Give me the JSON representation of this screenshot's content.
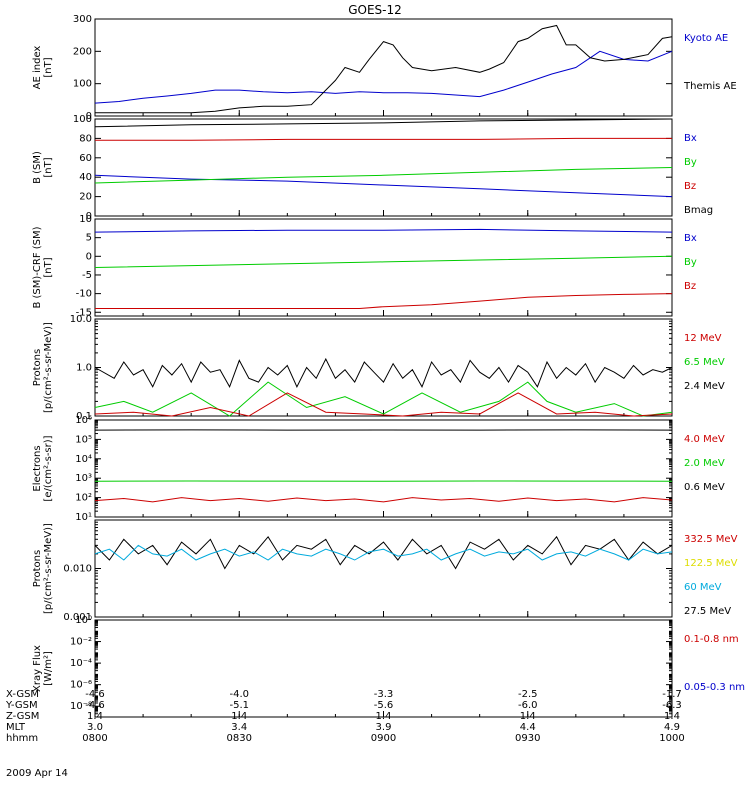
{
  "title": "GOES-12",
  "date_label": "2009 Apr 14",
  "colors": {
    "black": "#000000",
    "blue": "#0000cc",
    "green": "#00cc00",
    "red": "#cc0000",
    "cyan": "#00aadd",
    "yellow": "#dddd00"
  },
  "panels": [
    {
      "id": "ae",
      "ylabel": [
        "AE index",
        "[nT]"
      ],
      "scale": "linear",
      "ylim": [
        0,
        300
      ],
      "ticks": [
        "0",
        "100",
        "200",
        "300"
      ],
      "legend": [
        {
          "text": "Kyoto AE",
          "color": "blue"
        },
        {
          "text": "Themis AE",
          "color": "black"
        }
      ]
    },
    {
      "id": "b",
      "ylabel": [
        "B (SM)",
        "[nT]"
      ],
      "scale": "linear",
      "ylim": [
        0,
        100
      ],
      "ticks": [
        "0",
        "20",
        "40",
        "60",
        "80",
        "100"
      ],
      "legend": [
        {
          "text": "Bx",
          "color": "blue"
        },
        {
          "text": "By",
          "color": "green"
        },
        {
          "text": "Bz",
          "color": "red"
        },
        {
          "text": "Bmag",
          "color": "black"
        }
      ]
    },
    {
      "id": "db",
      "ylabel": [
        "B (SM)-CRF (SM)",
        "[nT]"
      ],
      "scale": "linear",
      "ylim": [
        -16,
        10
      ],
      "ticks": [
        "-15",
        "-10",
        "-5",
        "0",
        "5",
        "10"
      ],
      "legend": [
        {
          "text": "Bx",
          "color": "blue"
        },
        {
          "text": "By",
          "color": "green"
        },
        {
          "text": "Bz",
          "color": "red"
        }
      ]
    },
    {
      "id": "p1",
      "ylabel": [
        "Protons",
        "[p/(cm²-s-sr-MeV)]"
      ],
      "scale": "log",
      "ylim": [
        0.1,
        10
      ],
      "ticks": [
        "0.1",
        "1.0",
        "10.0"
      ],
      "legend": [
        {
          "text": "12 MeV",
          "color": "red"
        },
        {
          "text": "6.5 MeV",
          "color": "green"
        },
        {
          "text": "2.4 MeV",
          "color": "black"
        }
      ]
    },
    {
      "id": "e",
      "ylabel": [
        "Electrons",
        "[e/(cm²-s-sr)]"
      ],
      "scale": "log",
      "ylim": [
        10,
        1000000
      ],
      "ticks": [
        "10¹",
        "10²",
        "10³",
        "10⁴",
        "10⁵",
        "10⁶"
      ],
      "legend": [
        {
          "text": "4.0 MeV",
          "color": "red"
        },
        {
          "text": "2.0 MeV",
          "color": "green"
        },
        {
          "text": "0.6 MeV",
          "color": "black"
        }
      ]
    },
    {
      "id": "p2",
      "ylabel": [
        "Protons",
        "[p/(cm²-s-sr-MeV)]"
      ],
      "scale": "log",
      "ylim": [
        0.001,
        0.1
      ],
      "ticks": [
        "0.001",
        "0.010"
      ],
      "legend": [
        {
          "text": "332.5 MeV",
          "color": "red"
        },
        {
          "text": "122.5 MeV",
          "color": "yellow"
        },
        {
          "text": "60 MeV",
          "color": "cyan"
        },
        {
          "text": "27.5 MeV",
          "color": "black"
        }
      ]
    },
    {
      "id": "x",
      "ylabel": [
        "Xray Flux",
        "[W/m²]"
      ],
      "scale": "log",
      "ylim": [
        1e-09,
        1
      ],
      "ticks": [
        "10⁻⁸",
        "10⁻⁶",
        "10⁻⁴",
        "10⁻²",
        "10⁰"
      ],
      "legend": [
        {
          "text": "0.1-0.8 nm",
          "color": "red"
        },
        {
          "text": "0.05-0.3 nm",
          "color": "blue"
        }
      ]
    }
  ],
  "x_table": {
    "row_labels": [
      "X-GSM",
      "Y-GSM",
      "Z-GSM",
      "MLT",
      "hhmm"
    ],
    "columns": [
      {
        "values": [
          "-4.6",
          "-4.6",
          "1.4",
          "3.0",
          "0800"
        ]
      },
      {
        "values": [
          "-4.0",
          "-5.1",
          "1.4",
          "3.4",
          "0830"
        ]
      },
      {
        "values": [
          "-3.3",
          "-5.6",
          "1.4",
          "3.9",
          "0900"
        ]
      },
      {
        "values": [
          "-2.5",
          "-6.0",
          "1.4",
          "4.4",
          "0930"
        ]
      },
      {
        "values": [
          "-1.7",
          "-6.3",
          "1.4",
          "4.9",
          "1000"
        ]
      }
    ]
  },
  "chart_data": {
    "type": "line",
    "title": "GOES-12",
    "x_unit": "minutes since 0800 UT",
    "x_range": [
      0,
      120
    ],
    "panels": [
      {
        "id": "ae",
        "series": [
          {
            "name": "Kyoto AE",
            "color": "blue",
            "x": [
              0,
              5,
              10,
              15,
              20,
              25,
              30,
              35,
              40,
              45,
              50,
              55,
              60,
              65,
              70,
              75,
              80,
              85,
              90,
              95,
              100,
              105,
              110,
              115,
              120
            ],
            "y": [
              40,
              45,
              55,
              62,
              70,
              80,
              80,
              75,
              72,
              75,
              70,
              75,
              72,
              72,
              70,
              65,
              60,
              80,
              105,
              130,
              150,
              200,
              175,
              170,
              200
            ]
          },
          {
            "name": "Themis AE",
            "color": "black",
            "x": [
              0,
              5,
              10,
              15,
              20,
              25,
              30,
              35,
              40,
              45,
              50,
              52,
              55,
              57,
              60,
              62,
              64,
              66,
              70,
              75,
              80,
              82,
              85,
              88,
              90,
              93,
              96,
              98,
              100,
              103,
              106,
              110,
              115,
              118,
              120
            ],
            "y": [
              10,
              10,
              10,
              10,
              10,
              15,
              25,
              30,
              30,
              35,
              110,
              150,
              135,
              175,
              230,
              220,
              180,
              150,
              140,
              150,
              135,
              145,
              165,
              230,
              240,
              270,
              280,
              220,
              220,
              180,
              170,
              175,
              190,
              240,
              245
            ]
          }
        ]
      },
      {
        "id": "b",
        "series": [
          {
            "name": "Bx",
            "color": "blue",
            "x": [
              0,
              20,
              40,
              60,
              80,
              100,
              120
            ],
            "y": [
              42,
              38,
              36,
              32,
              28,
              24,
              20
            ]
          },
          {
            "name": "By",
            "color": "green",
            "x": [
              0,
              20,
              40,
              60,
              80,
              100,
              120
            ],
            "y": [
              34,
              37,
              40,
              42,
              45,
              48,
              50
            ]
          },
          {
            "name": "Bz",
            "color": "red",
            "x": [
              0,
              20,
              40,
              60,
              80,
              100,
              120
            ],
            "y": [
              78,
              78,
              79,
              79,
              79,
              80,
              80
            ]
          },
          {
            "name": "Bmag",
            "color": "black",
            "x": [
              0,
              20,
              40,
              60,
              80,
              100,
              120
            ],
            "y": [
              92,
              94,
              95,
              96,
              98,
              99,
              100
            ]
          }
        ]
      },
      {
        "id": "db",
        "series": [
          {
            "name": "Bx",
            "color": "blue",
            "x": [
              0,
              20,
              40,
              60,
              80,
              100,
              120
            ],
            "y": [
              6.5,
              6.8,
              7,
              7,
              7.2,
              6.8,
              6.5
            ]
          },
          {
            "name": "By",
            "color": "green",
            "x": [
              0,
              20,
              40,
              60,
              80,
              100,
              120
            ],
            "y": [
              -3,
              -2.5,
              -2,
              -1.5,
              -1,
              -0.5,
              0
            ]
          },
          {
            "name": "Bz",
            "color": "red",
            "x": [
              0,
              20,
              40,
              55,
              60,
              70,
              80,
              90,
              100,
              110,
              120
            ],
            "y": [
              -14,
              -14,
              -14,
              -14,
              -13.5,
              -13,
              -12,
              -11,
              -10.5,
              -10.2,
              -10
            ]
          }
        ]
      },
      {
        "id": "p1",
        "series": [
          {
            "name": "2.4 MeV",
            "color": "black",
            "x": [
              0,
              4,
              6,
              8,
              10,
              12,
              14,
              16,
              18,
              20,
              22,
              24,
              26,
              28,
              30,
              32,
              34,
              36,
              38,
              40,
              42,
              44,
              46,
              48,
              50,
              52,
              54,
              56,
              58,
              60,
              62,
              64,
              66,
              68,
              70,
              72,
              74,
              76,
              78,
              80,
              82,
              84,
              86,
              88,
              90,
              92,
              94,
              96,
              98,
              100,
              102,
              104,
              106,
              108,
              110,
              112,
              114,
              116,
              118,
              120
            ],
            "y": [
              1.0,
              0.6,
              1.3,
              0.7,
              0.9,
              0.4,
              1.1,
              0.7,
              1.2,
              0.5,
              1.3,
              0.8,
              0.9,
              0.4,
              1.4,
              0.6,
              0.5,
              1.0,
              0.7,
              1.1,
              0.4,
              1.0,
              0.6,
              1.5,
              0.6,
              0.9,
              0.5,
              1.3,
              0.8,
              0.5,
              1.2,
              0.6,
              0.9,
              0.4,
              1.3,
              0.7,
              0.9,
              0.5,
              1.4,
              0.8,
              0.6,
              1.0,
              0.5,
              1.1,
              0.8,
              0.4,
              1.3,
              0.6,
              1.0,
              0.7,
              1.2,
              0.5,
              1.0,
              0.8,
              0.6,
              1.1,
              0.7,
              0.9,
              0.8,
              1.0
            ]
          },
          {
            "name": "6.5 MeV",
            "color": "green",
            "x": [
              0,
              6,
              12,
              20,
              28,
              36,
              44,
              52,
              60,
              68,
              76,
              84,
              90,
              94,
              100,
              108,
              114,
              120
            ],
            "y": [
              0.15,
              0.2,
              0.12,
              0.3,
              0.1,
              0.5,
              0.15,
              0.25,
              0.11,
              0.3,
              0.12,
              0.2,
              0.5,
              0.2,
              0.12,
              0.18,
              0.1,
              0.12
            ]
          },
          {
            "name": "12 MeV",
            "color": "red",
            "x": [
              0,
              8,
              16,
              24,
              32,
              40,
              48,
              56,
              64,
              72,
              80,
              88,
              96,
              104,
              112,
              120
            ],
            "y": [
              0.11,
              0.12,
              0.1,
              0.15,
              0.1,
              0.3,
              0.12,
              0.11,
              0.1,
              0.12,
              0.11,
              0.3,
              0.11,
              0.12,
              0.1,
              0.11
            ]
          }
        ]
      },
      {
        "id": "e",
        "series": [
          {
            "name": "0.6 MeV",
            "color": "black",
            "x": [
              0,
              20,
              40,
              60,
              80,
              100,
              120
            ],
            "y": [
              300000,
              310000,
              300000,
              305000,
              300000,
              310000,
              300000
            ]
          },
          {
            "name": "2.0 MeV",
            "color": "green",
            "x": [
              0,
              20,
              40,
              60,
              80,
              100,
              120
            ],
            "y": [
              700,
              720,
              710,
              700,
              720,
              710,
              700
            ]
          },
          {
            "name": "4.0 MeV",
            "color": "red",
            "x": [
              0,
              6,
              12,
              18,
              24,
              30,
              36,
              42,
              48,
              54,
              60,
              66,
              72,
              78,
              84,
              90,
              96,
              102,
              108,
              114,
              120
            ],
            "y": [
              70,
              90,
              60,
              100,
              70,
              90,
              65,
              95,
              70,
              85,
              60,
              100,
              75,
              90,
              65,
              95,
              70,
              85,
              60,
              100,
              75
            ]
          }
        ]
      },
      {
        "id": "p2",
        "series": [
          {
            "name": "27.5 MeV",
            "color": "black",
            "x": [
              0,
              3,
              6,
              9,
              12,
              15,
              18,
              21,
              24,
              27,
              30,
              33,
              36,
              39,
              42,
              45,
              48,
              51,
              54,
              57,
              60,
              63,
              66,
              69,
              72,
              75,
              78,
              81,
              84,
              87,
              90,
              93,
              96,
              99,
              102,
              105,
              108,
              111,
              114,
              117,
              120
            ],
            "y": [
              0.03,
              0.015,
              0.04,
              0.02,
              0.03,
              0.012,
              0.035,
              0.02,
              0.04,
              0.01,
              0.03,
              0.02,
              0.045,
              0.015,
              0.03,
              0.025,
              0.04,
              0.012,
              0.03,
              0.02,
              0.035,
              0.015,
              0.04,
              0.02,
              0.03,
              0.01,
              0.035,
              0.025,
              0.04,
              0.015,
              0.03,
              0.02,
              0.045,
              0.012,
              0.03,
              0.025,
              0.04,
              0.015,
              0.035,
              0.02,
              0.03
            ]
          },
          {
            "name": "60 MeV",
            "color": "cyan",
            "x": [
              0,
              3,
              6,
              9,
              12,
              15,
              18,
              21,
              24,
              27,
              30,
              33,
              36,
              39,
              42,
              45,
              48,
              51,
              54,
              57,
              60,
              63,
              66,
              69,
              72,
              75,
              78,
              81,
              84,
              87,
              90,
              93,
              96,
              99,
              102,
              105,
              108,
              111,
              114,
              117,
              120
            ],
            "y": [
              0.02,
              0.025,
              0.015,
              0.03,
              0.02,
              0.018,
              0.025,
              0.015,
              0.02,
              0.025,
              0.018,
              0.022,
              0.015,
              0.025,
              0.02,
              0.018,
              0.025,
              0.02,
              0.015,
              0.022,
              0.025,
              0.018,
              0.02,
              0.025,
              0.015,
              0.02,
              0.025,
              0.018,
              0.022,
              0.02,
              0.025,
              0.015,
              0.02,
              0.022,
              0.018,
              0.025,
              0.02,
              0.015,
              0.025,
              0.02,
              0.022
            ]
          }
        ]
      },
      {
        "id": "x",
        "series": []
      }
    ]
  }
}
